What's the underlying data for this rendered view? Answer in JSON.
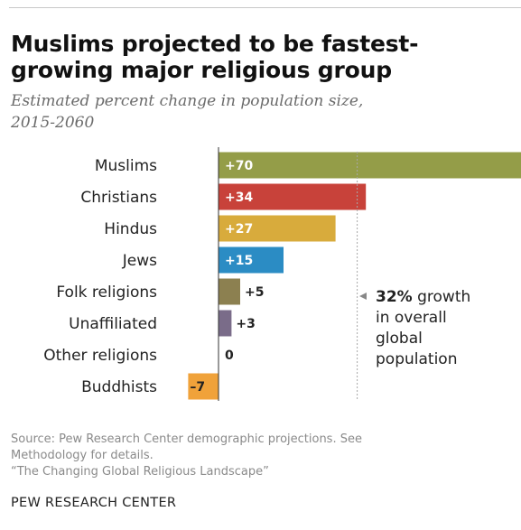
{
  "header": {
    "title_line1": "Muslims projected to be fastest-",
    "title_line2": "growing major religious group",
    "subtitle_line1": "Estimated percent change in population size,",
    "subtitle_line2": "2015-2060"
  },
  "chart_data": {
    "type": "bar",
    "orientation": "horizontal",
    "categories": [
      "Muslims",
      "Christians",
      "Hindus",
      "Jews",
      "Folk religions",
      "Unaffiliated",
      "Other religions",
      "Buddhists"
    ],
    "values": [
      70,
      34,
      27,
      15,
      5,
      3,
      0,
      -7
    ],
    "labels": [
      "+70",
      "+34",
      "+27",
      "+15",
      "+5",
      "+3",
      "0",
      "–7"
    ],
    "colors": [
      "#949d48",
      "#c8423a",
      "#d8ab3c",
      "#2b8cc4",
      "#8c8050",
      "#7a6c89",
      "#999999",
      "#f0a23a"
    ],
    "reference_line": {
      "value": 32,
      "annotation": [
        "32% growth",
        "in overall",
        "global",
        "population"
      ],
      "annotation_bold": "32%"
    },
    "grid": false,
    "legend": "none"
  },
  "footer": {
    "source_line1": "Source: Pew Research Center demographic projections. See",
    "source_line2": "Methodology for details.",
    "source_line3": "“The Changing Global Religious Landscape”",
    "brand": "PEW RESEARCH CENTER"
  }
}
